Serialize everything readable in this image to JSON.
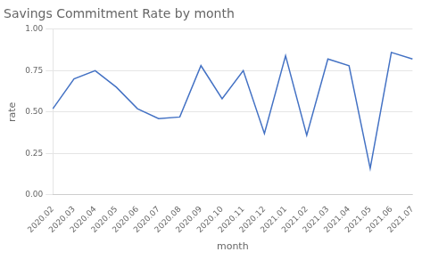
{
  "chart_data": {
    "type": "line",
    "title": "Savings Commitment Rate by month",
    "xlabel": "month",
    "ylabel": "rate",
    "categories": [
      "2020.02",
      "2020.03",
      "2020.04",
      "2020.05",
      "2020.06",
      "2020.07",
      "2020.08",
      "2020.09",
      "2020.10",
      "2020.11",
      "2020.12",
      "2021.01",
      "2021.02",
      "2021.03",
      "2021.04",
      "2021.05",
      "2021.06",
      "2021.07"
    ],
    "values": [
      0.52,
      0.7,
      0.75,
      0.65,
      0.52,
      0.46,
      0.47,
      0.78,
      0.58,
      0.75,
      0.37,
      0.84,
      0.36,
      0.82,
      0.78,
      0.16,
      0.86,
      0.82
    ],
    "color": "#4472C4",
    "ylim": [
      0.0,
      1.0
    ],
    "yticks": [
      {
        "value": 0.0,
        "label": "0.00"
      },
      {
        "value": 0.25,
        "label": "0.25"
      },
      {
        "value": 0.5,
        "label": "0.50"
      },
      {
        "value": 0.75,
        "label": "0.75"
      },
      {
        "value": 1.0,
        "label": "1.00"
      }
    ],
    "grid": true
  }
}
